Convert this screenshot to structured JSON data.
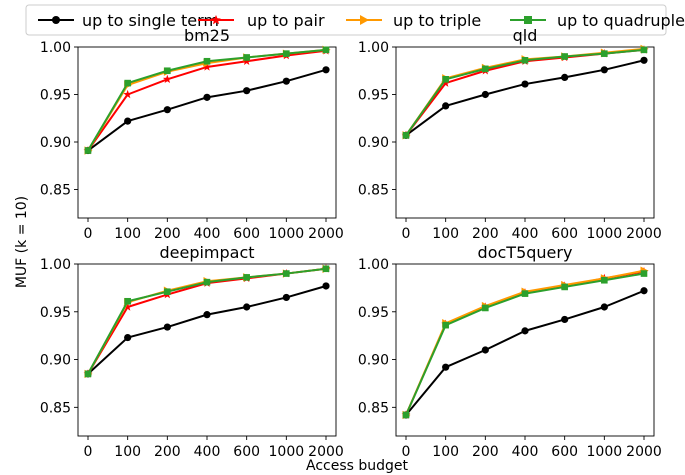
{
  "figure": {
    "ylabel": "MUF (k = 10)",
    "xlabel": "Access budget"
  },
  "legend": {
    "placement": "top",
    "entries": [
      {
        "label": "up to single term",
        "color": "#000000",
        "marker": "circle"
      },
      {
        "label": "up to pair",
        "color": "#ff0000",
        "marker": "star"
      },
      {
        "label": "up to triple",
        "color": "#ff9900",
        "marker": "triangle-right"
      },
      {
        "label": "up to quadruple",
        "color": "#2ca02c",
        "marker": "square"
      }
    ]
  },
  "chart_data": [
    {
      "type": "line",
      "title": "bm25",
      "categories": [
        "0",
        "100",
        "200",
        "400",
        "600",
        "1000",
        "2000"
      ],
      "ylim": [
        0.82,
        1.0
      ],
      "yticks": [
        "0.85",
        "0.90",
        "0.95",
        "1.00"
      ],
      "series": [
        {
          "name": "up to single term",
          "color": "#000000",
          "marker": "circle",
          "values": [
            0.891,
            0.922,
            0.934,
            0.947,
            0.954,
            0.964,
            0.976
          ]
        },
        {
          "name": "up to pair",
          "color": "#ff0000",
          "marker": "star",
          "values": [
            0.891,
            0.95,
            0.966,
            0.979,
            0.985,
            0.991,
            0.996
          ]
        },
        {
          "name": "up to triple",
          "color": "#ff9900",
          "marker": "triangle-right",
          "values": [
            0.891,
            0.96,
            0.974,
            0.983,
            0.989,
            0.993,
            0.997
          ]
        },
        {
          "name": "up to quadruple",
          "color": "#2ca02c",
          "marker": "square",
          "values": [
            0.891,
            0.962,
            0.975,
            0.985,
            0.989,
            0.993,
            0.997
          ]
        }
      ]
    },
    {
      "type": "line",
      "title": "qld",
      "categories": [
        "0",
        "100",
        "200",
        "400",
        "600",
        "1000",
        "2000"
      ],
      "ylim": [
        0.82,
        1.0
      ],
      "yticks": [
        "0.85",
        "0.90",
        "0.95",
        "1.00"
      ],
      "series": [
        {
          "name": "up to single term",
          "color": "#000000",
          "marker": "circle",
          "values": [
            0.907,
            0.938,
            0.95,
            0.961,
            0.968,
            0.976,
            0.986
          ]
        },
        {
          "name": "up to pair",
          "color": "#ff0000",
          "marker": "star",
          "values": [
            0.907,
            0.962,
            0.975,
            0.985,
            0.989,
            0.993,
            0.997
          ]
        },
        {
          "name": "up to triple",
          "color": "#ff9900",
          "marker": "triangle-right",
          "values": [
            0.907,
            0.967,
            0.978,
            0.987,
            0.99,
            0.994,
            0.998
          ]
        },
        {
          "name": "up to quadruple",
          "color": "#2ca02c",
          "marker": "square",
          "values": [
            0.907,
            0.966,
            0.977,
            0.986,
            0.99,
            0.993,
            0.997
          ]
        }
      ]
    },
    {
      "type": "line",
      "title": "deepimpact",
      "categories": [
        "0",
        "100",
        "200",
        "400",
        "600",
        "1000",
        "2000"
      ],
      "ylim": [
        0.82,
        1.0
      ],
      "yticks": [
        "0.85",
        "0.90",
        "0.95",
        "1.00"
      ],
      "series": [
        {
          "name": "up to single term",
          "color": "#000000",
          "marker": "circle",
          "values": [
            0.885,
            0.923,
            0.934,
            0.947,
            0.955,
            0.965,
            0.977
          ]
        },
        {
          "name": "up to pair",
          "color": "#ff0000",
          "marker": "star",
          "values": [
            0.885,
            0.955,
            0.968,
            0.98,
            0.985,
            0.99,
            0.995
          ]
        },
        {
          "name": "up to triple",
          "color": "#ff9900",
          "marker": "triangle-right",
          "values": [
            0.885,
            0.96,
            0.972,
            0.982,
            0.986,
            0.99,
            0.995
          ]
        },
        {
          "name": "up to quadruple",
          "color": "#2ca02c",
          "marker": "square",
          "values": [
            0.885,
            0.961,
            0.971,
            0.981,
            0.986,
            0.99,
            0.995
          ]
        }
      ]
    },
    {
      "type": "line",
      "title": "docT5query",
      "categories": [
        "0",
        "100",
        "200",
        "400",
        "600",
        "1000",
        "2000"
      ],
      "ylim": [
        0.82,
        1.0
      ],
      "yticks": [
        "0.85",
        "0.90",
        "0.95",
        "1.00"
      ],
      "series": [
        {
          "name": "up to single term",
          "color": "#000000",
          "marker": "circle",
          "values": [
            0.842,
            0.892,
            0.91,
            0.93,
            0.942,
            0.955,
            0.972
          ]
        },
        {
          "name": "up to pair",
          "color": "#ff0000",
          "marker": "star",
          "values": [
            0.842,
            0.937,
            0.955,
            0.97,
            0.977,
            0.985,
            0.992
          ]
        },
        {
          "name": "up to triple",
          "color": "#ff9900",
          "marker": "triangle-right",
          "values": [
            0.842,
            0.938,
            0.956,
            0.971,
            0.978,
            0.985,
            0.993
          ]
        },
        {
          "name": "up to quadruple",
          "color": "#2ca02c",
          "marker": "square",
          "values": [
            0.842,
            0.936,
            0.954,
            0.969,
            0.976,
            0.983,
            0.99
          ]
        }
      ]
    }
  ]
}
